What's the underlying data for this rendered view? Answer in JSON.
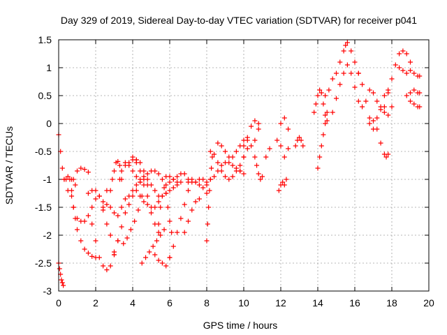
{
  "chart_data": {
    "type": "scatter",
    "title": "Day 329 of 2019, Sidereal Day-to-day VTEC variation (SDTVAR) for receiver p041",
    "xlabel": "GPS time / hours",
    "ylabel": "SDTVAR / TECUs",
    "xlim": [
      0,
      20
    ],
    "ylim": [
      -3,
      1.5
    ],
    "xticks": [
      0,
      2,
      4,
      6,
      8,
      10,
      12,
      14,
      16,
      18,
      20
    ],
    "xtick_labels": [
      "0",
      "2",
      "4",
      "6",
      "8",
      "10",
      "12",
      "14",
      "16",
      "18",
      "20"
    ],
    "yticks": [
      -3,
      -2.5,
      -2,
      -1.5,
      -1,
      -0.5,
      0,
      0.5,
      1,
      1.5
    ],
    "ytick_labels": [
      "-3",
      "-2.5",
      "-2",
      "-1.5",
      "-1",
      "-0.5",
      "0",
      "0.5",
      "1",
      "1.5"
    ],
    "grid": true,
    "marker": "+",
    "marker_color": "#ff0000",
    "series": [
      {
        "name": "s1",
        "x": [
          0.0,
          0.05,
          0.1,
          0.15,
          0.2,
          0.25
        ],
        "y": [
          -2.5,
          -2.6,
          -2.7,
          -2.8,
          -2.85,
          -2.9
        ]
      },
      {
        "name": "s2",
        "x": [
          0.0,
          0.1,
          0.2,
          0.3,
          0.4,
          0.5,
          0.7,
          0.9
        ],
        "y": [
          -0.2,
          -0.5,
          -0.8,
          -1.0,
          -1.0,
          -0.95,
          -1.0,
          -1.1
        ]
      },
      {
        "name": "s3",
        "x": [
          0.3,
          0.5,
          0.7,
          0.8,
          1.0,
          1.2,
          1.4,
          1.6,
          1.8,
          2.0
        ],
        "y": [
          -1.0,
          -1.2,
          -1.3,
          -1.5,
          -1.7,
          -1.75,
          -1.75,
          -1.65,
          -1.5,
          -1.35
        ]
      },
      {
        "name": "s4",
        "x": [
          0.6,
          0.7,
          0.8,
          0.9,
          1.0,
          1.2,
          1.4,
          1.6,
          1.8,
          2.0
        ],
        "y": [
          -1.0,
          -1.2,
          -1.5,
          -1.7,
          -1.9,
          -2.1,
          -2.25,
          -2.32,
          -2.38,
          -2.4
        ]
      },
      {
        "name": "s5",
        "x": [
          0.8,
          1.0,
          1.2,
          1.4,
          1.6
        ],
        "y": [
          -1.0,
          -0.85,
          -0.8,
          -0.82,
          -0.87
        ]
      },
      {
        "name": "s6",
        "x": [
          1.6,
          1.8,
          2.0,
          2.2,
          2.4,
          2.6
        ],
        "y": [
          -1.25,
          -1.2,
          -1.2,
          -1.3,
          -1.4,
          -1.2
        ]
      },
      {
        "name": "s7",
        "x": [
          1.8,
          2.0,
          2.2,
          2.4,
          2.6,
          2.8,
          3.0,
          3.2
        ],
        "y": [
          -1.8,
          -2.1,
          -2.4,
          -2.55,
          -2.62,
          -2.55,
          -2.35,
          -2.1
        ]
      },
      {
        "name": "s8",
        "x": [
          2.2,
          2.4,
          2.6,
          2.8,
          3.0
        ],
        "y": [
          -1.3,
          -1.55,
          -1.8,
          -2.0,
          -2.3
        ]
      },
      {
        "name": "s9",
        "x": [
          2.4,
          2.6,
          2.8,
          3.0,
          3.2,
          3.4,
          3.6,
          3.8,
          4.0,
          4.2,
          4.4
        ],
        "y": [
          -1.5,
          -1.45,
          -1.5,
          -1.6,
          -1.65,
          -1.5,
          -1.35,
          -1.3,
          -1.2,
          -1.1,
          -1.05
        ]
      },
      {
        "name": "s10",
        "x": [
          2.8,
          2.9,
          3.0,
          3.1,
          3.2,
          3.3,
          3.4
        ],
        "y": [
          -1.2,
          -1.0,
          -0.85,
          -0.7,
          -0.68,
          -0.75,
          -1.0
        ]
      },
      {
        "name": "s11",
        "x": [
          3.0,
          3.2,
          3.4,
          3.6,
          3.8,
          4.0,
          4.2,
          4.4
        ],
        "y": [
          -2.35,
          -2.1,
          -1.85,
          -1.6,
          -1.45,
          -1.3,
          -1.2,
          -1.05
        ]
      },
      {
        "name": "s12",
        "x": [
          3.3,
          3.4,
          3.6,
          3.8,
          4.0,
          4.2
        ],
        "y": [
          -1.0,
          -0.85,
          -0.75,
          -0.7,
          -0.65,
          -0.65
        ]
      },
      {
        "name": "s13",
        "x": [
          3.5,
          3.7,
          3.9,
          4.1,
          4.3,
          4.5
        ],
        "y": [
          -2.15,
          -2.05,
          -1.9,
          -1.75,
          -1.55,
          -1.3
        ]
      },
      {
        "name": "s14",
        "x": [
          3.6,
          3.8,
          4.0,
          4.2,
          4.4,
          4.6,
          4.8,
          5.0,
          5.2,
          5.4
        ],
        "y": [
          -0.7,
          -0.75,
          -0.85,
          -0.95,
          -1.0,
          -0.95,
          -0.9,
          -0.85,
          -0.85,
          -0.9
        ]
      },
      {
        "name": "s15",
        "x": [
          4.0,
          4.2,
          4.4,
          4.6,
          4.8
        ],
        "y": [
          -0.6,
          -0.7,
          -0.85,
          -1.0,
          -1.1
        ]
      },
      {
        "name": "s16",
        "x": [
          4.2,
          4.4,
          4.6,
          4.8,
          5.0,
          5.2,
          5.4
        ],
        "y": [
          -0.65,
          -0.7,
          -0.85,
          -1.0,
          -1.1,
          -1.2,
          -1.3
        ]
      },
      {
        "name": "s17",
        "x": [
          4.4,
          4.6,
          4.8,
          5.0,
          5.2,
          5.4,
          5.6,
          5.8,
          6.0,
          6.2,
          6.4,
          6.6
        ],
        "y": [
          -1.3,
          -1.4,
          -1.45,
          -1.5,
          -1.5,
          -1.4,
          -1.3,
          -1.25,
          -1.2,
          -1.15,
          -1.1,
          -1.05
        ]
      },
      {
        "name": "s18",
        "x": [
          4.5,
          4.7,
          4.9,
          5.1,
          5.3,
          5.5,
          5.7
        ],
        "y": [
          -2.5,
          -2.4,
          -2.3,
          -2.2,
          -2.1,
          -2.0,
          -1.9
        ]
      },
      {
        "name": "s19",
        "x": [
          4.6,
          4.8,
          5.0,
          5.2,
          5.4
        ],
        "y": [
          -1.1,
          -1.3,
          -1.6,
          -1.8,
          -1.95
        ]
      },
      {
        "name": "s20",
        "x": [
          5.2,
          5.4,
          5.6,
          5.8,
          6.0
        ],
        "y": [
          -2.35,
          -2.45,
          -2.5,
          -2.55,
          -2.4
        ]
      },
      {
        "name": "s21",
        "x": [
          5.4,
          5.5,
          5.6,
          5.7,
          5.8,
          5.9,
          6.0,
          6.1
        ],
        "y": [
          -1.8,
          -1.5,
          -1.3,
          -1.15,
          -1.25,
          -1.5,
          -1.75,
          -1.95
        ]
      },
      {
        "name": "s22",
        "x": [
          5.6,
          5.8,
          6.0,
          6.2,
          6.4
        ],
        "y": [
          -1.0,
          -0.95,
          -0.95,
          -1.0,
          -1.05
        ]
      },
      {
        "name": "s23",
        "x": [
          5.8,
          6.0,
          6.2,
          6.4,
          6.6,
          6.8,
          7.0,
          7.2,
          7.4,
          7.6,
          7.8,
          8.0
        ],
        "y": [
          -1.1,
          -1.05,
          -1.0,
          -0.95,
          -0.9,
          -0.9,
          -1.0,
          -1.05,
          -1.05,
          -1.0,
          -1.0,
          -1.05
        ]
      },
      {
        "name": "s24",
        "x": [
          6.0,
          6.2,
          6.4,
          6.6,
          6.8,
          7.0
        ],
        "y": [
          -2.4,
          -2.2,
          -1.95,
          -1.7,
          -1.45,
          -1.2
        ]
      },
      {
        "name": "s25",
        "x": [
          6.8,
          7.0,
          7.2,
          7.4,
          7.6
        ],
        "y": [
          -1.95,
          -1.75,
          -1.55,
          -1.4,
          -1.35
        ]
      },
      {
        "name": "s26",
        "x": [
          7.0,
          7.2,
          7.4,
          7.6,
          7.8,
          8.0
        ],
        "y": [
          -1.05,
          -1.0,
          -1.05,
          -1.1,
          -1.15,
          -1.25
        ]
      },
      {
        "name": "s27",
        "x": [
          8.0,
          8.05,
          8.1,
          8.15,
          8.2,
          8.25,
          8.3
        ],
        "y": [
          -2.1,
          -1.8,
          -1.5,
          -1.2,
          -1.0,
          -0.8,
          -0.6
        ]
      },
      {
        "name": "s28",
        "x": [
          8.0,
          8.2,
          8.4,
          8.6,
          8.8,
          9.0,
          9.2,
          9.4,
          9.6,
          9.8,
          10.0
        ],
        "y": [
          -1.1,
          -1.0,
          -0.95,
          -0.85,
          -0.75,
          -0.7,
          -0.7,
          -0.75,
          -0.8,
          -0.85,
          -0.9
        ]
      },
      {
        "name": "s29",
        "x": [
          8.2,
          8.4,
          8.6,
          8.8,
          9.0,
          9.2,
          9.4,
          9.6,
          9.8,
          10.0
        ],
        "y": [
          -0.5,
          -0.55,
          -0.7,
          -0.85,
          -0.95,
          -1.0,
          -0.95,
          -0.85,
          -0.75,
          -0.6
        ]
      },
      {
        "name": "s30",
        "x": [
          8.6,
          8.8,
          9.0,
          9.2,
          9.4,
          9.6,
          9.8,
          10.0,
          10.2
        ],
        "y": [
          -0.35,
          -0.4,
          -0.5,
          -0.6,
          -0.6,
          -0.5,
          -0.4,
          -0.3,
          -0.25
        ]
      },
      {
        "name": "s31",
        "x": [
          9.8,
          10.0,
          10.2,
          10.4,
          10.6,
          10.8
        ],
        "y": [
          -0.85,
          -0.6,
          -0.3,
          -0.05,
          0.05,
          0.0
        ]
      },
      {
        "name": "s32",
        "x": [
          10.0,
          10.2,
          10.4,
          10.6,
          10.8
        ],
        "y": [
          -0.4,
          -0.45,
          -0.4,
          -0.3,
          -0.1
        ]
      },
      {
        "name": "s33",
        "x": [
          10.6,
          10.7,
          10.8,
          10.9,
          11.0,
          11.2,
          11.4
        ],
        "y": [
          -0.6,
          -0.75,
          -0.9,
          -1.0,
          -0.95,
          -0.6,
          -0.45
        ]
      },
      {
        "name": "s34",
        "x": [
          11.8,
          12.0,
          12.2,
          12.4
        ],
        "y": [
          -0.3,
          -0.4,
          -0.6,
          -0.45
        ]
      },
      {
        "name": "s35",
        "x": [
          11.9,
          12.0,
          12.1,
          12.2,
          12.3
        ],
        "y": [
          -1.2,
          -1.1,
          -1.05,
          -1.1,
          -1.0
        ]
      },
      {
        "name": "s36",
        "x": [
          12.0,
          12.2,
          12.4
        ],
        "y": [
          0.0,
          0.1,
          -0.1
        ]
      },
      {
        "name": "s37",
        "x": [
          12.8,
          12.9,
          13.0,
          13.1,
          13.2
        ],
        "y": [
          -0.4,
          -0.3,
          -0.25,
          -0.3,
          -0.4
        ]
      },
      {
        "name": "s38",
        "x": [
          13.8,
          13.9,
          14.0,
          14.1,
          14.2,
          14.3,
          14.4,
          14.5
        ],
        "y": [
          0.2,
          0.35,
          0.5,
          0.6,
          0.55,
          0.35,
          0.15,
          0.05
        ]
      },
      {
        "name": "s39",
        "x": [
          14.0,
          14.1,
          14.2,
          14.3,
          14.4,
          14.5
        ],
        "y": [
          -0.8,
          -0.6,
          -0.4,
          -0.2,
          0.0,
          0.2
        ]
      },
      {
        "name": "s40",
        "x": [
          14.4,
          14.6,
          14.8,
          15.0,
          15.2,
          15.4,
          15.5,
          15.6,
          15.8,
          16.0,
          16.2
        ],
        "y": [
          0.5,
          0.6,
          0.8,
          0.9,
          1.1,
          1.3,
          1.4,
          1.45,
          1.3,
          1.1,
          0.9
        ]
      },
      {
        "name": "s41",
        "x": [
          14.8,
          15.0,
          15.2,
          15.4,
          15.6,
          15.8,
          16.0,
          16.2,
          16.4
        ],
        "y": [
          0.2,
          0.45,
          0.7,
          0.9,
          1.05,
          0.9,
          0.65,
          0.4,
          0.3
        ]
      },
      {
        "name": "s42",
        "x": [
          16.2,
          16.4,
          16.6,
          16.8,
          17.0,
          17.2,
          17.4,
          17.6,
          17.8
        ],
        "y": [
          0.9,
          0.7,
          0.4,
          0.1,
          -0.1,
          0.1,
          0.3,
          0.5,
          0.6
        ]
      },
      {
        "name": "s43",
        "x": [
          16.8,
          17.0,
          17.2,
          17.4,
          17.6,
          17.7,
          17.8
        ],
        "y": [
          0.0,
          0.05,
          -0.1,
          -0.35,
          -0.55,
          -0.6,
          -0.55
        ]
      },
      {
        "name": "s44",
        "x": [
          16.8,
          17.0,
          17.2,
          17.4,
          17.6,
          17.8,
          18.0
        ],
        "y": [
          0.6,
          0.55,
          0.4,
          0.25,
          0.2,
          0.15,
          0.3
        ]
      },
      {
        "name": "s45",
        "x": [
          17.6,
          17.8,
          18.0,
          18.2,
          18.4,
          18.6,
          18.8,
          19.0
        ],
        "y": [
          0.3,
          0.55,
          0.8,
          1.05,
          1.25,
          1.3,
          1.25,
          1.1
        ]
      },
      {
        "name": "s46",
        "x": [
          18.4,
          18.6,
          18.8,
          19.0,
          19.2,
          19.4,
          19.5
        ],
        "y": [
          1.0,
          0.95,
          0.9,
          0.95,
          0.9,
          0.85,
          0.85
        ]
      },
      {
        "name": "s47",
        "x": [
          18.8,
          19.0,
          19.2,
          19.4,
          19.5
        ],
        "y": [
          0.5,
          0.4,
          0.35,
          0.3,
          0.3
        ]
      },
      {
        "name": "s48",
        "x": [
          19.0,
          19.2,
          19.4,
          19.5
        ],
        "y": [
          0.55,
          0.6,
          0.55,
          0.55
        ]
      }
    ]
  }
}
